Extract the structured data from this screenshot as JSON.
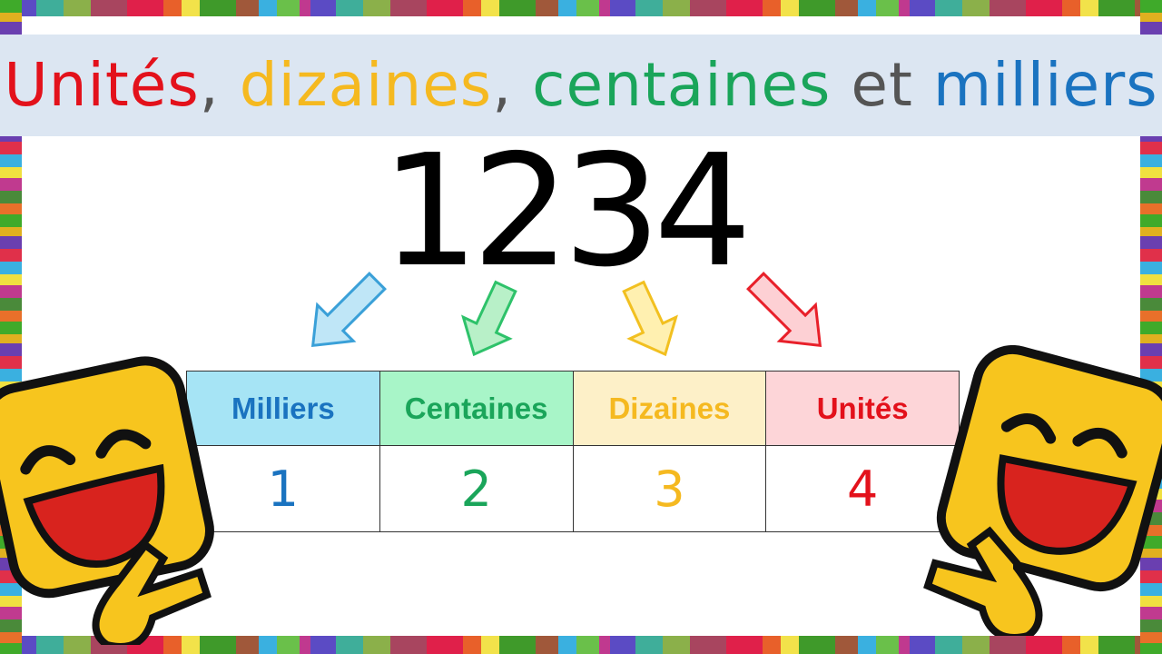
{
  "title": {
    "parts": [
      {
        "text": "Unités",
        "color": "#e3111b"
      },
      {
        "text": ", ",
        "color": "#555555"
      },
      {
        "text": "dizaines",
        "color": "#f5b920"
      },
      {
        "text": ", ",
        "color": "#555555"
      },
      {
        "text": "centaines",
        "color": "#1aa55a"
      },
      {
        "text": " et ",
        "color": "#555555"
      },
      {
        "text": "milliers",
        "color": "#1a73c0"
      }
    ]
  },
  "number": "1234",
  "table": {
    "columns": [
      {
        "header": "Milliers",
        "value": "1",
        "color": "#1a73c0",
        "bg": "#a6e4f5"
      },
      {
        "header": "Centaines",
        "value": "2",
        "color": "#1aa55a",
        "bg": "#a8f5c8"
      },
      {
        "header": "Dizaines",
        "value": "3",
        "color": "#f5b920",
        "bg": "#fdf0c8"
      },
      {
        "header": "Unités",
        "value": "4",
        "color": "#e3111b",
        "bg": "#fdd5d8"
      }
    ]
  },
  "icons": [
    "laughing-emoji-peace-sign",
    "laughing-emoji-peace-sign"
  ]
}
